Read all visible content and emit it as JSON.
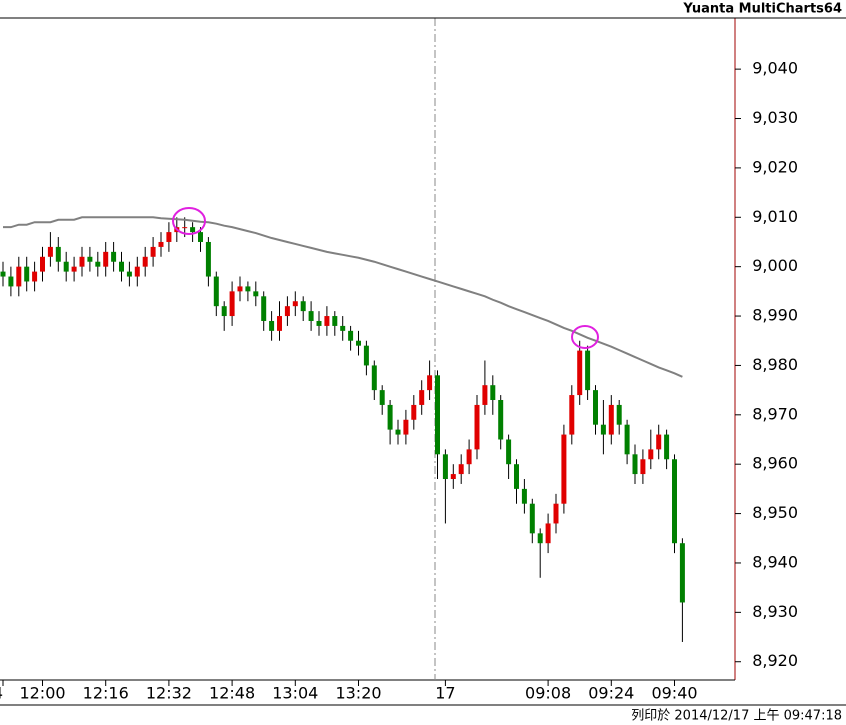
{
  "chart_data": {
    "type": "candlestick",
    "title": "Yuanta MultiCharts64",
    "footnote": "列印於 2014/12/17 上午 09:47:18",
    "categories": [
      "4",
      null,
      null,
      null,
      null,
      "12:00",
      null,
      null,
      null,
      null,
      null,
      null,
      null,
      "12:16",
      null,
      null,
      null,
      null,
      null,
      null,
      null,
      "12:32",
      null,
      null,
      null,
      null,
      null,
      null,
      null,
      "12:48",
      null,
      null,
      null,
      null,
      null,
      null,
      null,
      "13:04",
      null,
      null,
      null,
      null,
      null,
      null,
      null,
      "13:20",
      null,
      null,
      null,
      null,
      null,
      null,
      null,
      null,
      null,
      null,
      "17",
      null,
      null,
      null,
      null,
      null,
      null,
      null,
      null,
      null,
      null,
      null,
      null,
      "09:08",
      null,
      null,
      null,
      null,
      null,
      null,
      null,
      "09:24",
      null,
      null,
      null,
      null,
      null,
      null,
      null,
      "09:40",
      null
    ],
    "open": [
      8999,
      8998,
      8996,
      9000,
      8997,
      8999,
      9002,
      9004,
      9001,
      8999,
      9000,
      9002,
      9001,
      9000,
      9003,
      9001,
      8999,
      8998,
      9000,
      9002,
      9004,
      9005,
      9007,
      9008,
      9008,
      9007,
      9005,
      8998,
      8992,
      8990,
      8995,
      8996,
      8995,
      8994,
      8989,
      8987,
      8990,
      8992,
      8993,
      8991,
      8989,
      8988,
      8990,
      8988,
      8987,
      8985,
      8984,
      8980,
      8975,
      8972,
      8967,
      8966,
      8969,
      8972,
      8975,
      8978,
      8962,
      8957,
      8958,
      8960,
      8963,
      8972,
      8976,
      8973,
      8965,
      8960,
      8955,
      8952,
      8946,
      8944,
      8948,
      8952,
      8966,
      8974,
      8983,
      8975,
      8968,
      8966,
      8972,
      8968,
      8962,
      8958,
      8961,
      8963,
      8966,
      8961,
      8944
    ],
    "high": [
      9001,
      9000,
      9002,
      9002,
      9001,
      9004,
      9007,
      9006,
      9003,
      9002,
      9004,
      9004,
      9003,
      9005,
      9005,
      9003,
      9001,
      9002,
      9004,
      9006,
      9007,
      9009,
      9010,
      9010,
      9009,
      9008,
      9006,
      8999,
      8993,
      8997,
      8998,
      8997,
      8997,
      8995,
      8991,
      8993,
      8994,
      8995,
      8994,
      8993,
      8991,
      8992,
      8991,
      8990,
      8988,
      8987,
      8985,
      8981,
      8976,
      8973,
      8969,
      8971,
      8974,
      8977,
      8981,
      8979,
      8963,
      8960,
      8962,
      8965,
      8974,
      8981,
      8978,
      8974,
      8966,
      8961,
      8957,
      8953,
      8947,
      8950,
      8954,
      8968,
      8976,
      8985,
      8984,
      8976,
      8973,
      8974,
      8973,
      8969,
      8964,
      8963,
      8967,
      8968,
      8967,
      8962,
      8945
    ],
    "low": [
      8996,
      8994,
      8994,
      8995,
      8995,
      8997,
      9000,
      8999,
      8997,
      8997,
      8998,
      8999,
      8998,
      8998,
      8999,
      8997,
      8996,
      8996,
      8998,
      9000,
      9002,
      9003,
      9005,
      9006,
      9005,
      9003,
      8996,
      8990,
      8987,
      8988,
      8993,
      8993,
      8992,
      8987,
      8985,
      8985,
      8988,
      8990,
      8989,
      8987,
      8986,
      8986,
      8986,
      8985,
      8983,
      8982,
      8978,
      8973,
      8970,
      8964,
      8964,
      8964,
      8967,
      8970,
      8973,
      8957,
      8948,
      8955,
      8956,
      8958,
      8961,
      8970,
      8970,
      8963,
      8957,
      8952,
      8950,
      8944,
      8937,
      8942,
      8946,
      8950,
      8964,
      8972,
      8973,
      8966,
      8962,
      8964,
      8966,
      8960,
      8956,
      8956,
      8959,
      8961,
      8959,
      8942,
      8924
    ],
    "close": [
      8998,
      8996,
      9000,
      8997,
      8999,
      9002,
      9004,
      9001,
      8999,
      9000,
      9002,
      9001,
      9000,
      9003,
      9001,
      8999,
      8998,
      9000,
      9002,
      9004,
      9005,
      9007,
      9008,
      9008,
      9007,
      9005,
      8998,
      8992,
      8990,
      8995,
      8996,
      8995,
      8994,
      8989,
      8987,
      8990,
      8992,
      8993,
      8991,
      8989,
      8988,
      8990,
      8988,
      8987,
      8985,
      8984,
      8980,
      8975,
      8972,
      8967,
      8966,
      8969,
      8972,
      8975,
      8978,
      8962,
      8957,
      8958,
      8960,
      8963,
      8972,
      8976,
      8973,
      8965,
      8960,
      8955,
      8952,
      8946,
      8944,
      8948,
      8952,
      8966,
      8974,
      8983,
      8975,
      8968,
      8966,
      8972,
      8968,
      8962,
      8958,
      8961,
      8963,
      8966,
      8961,
      8944,
      8932
    ],
    "up_color": "#e00000",
    "down_color": "#008000",
    "ma": {
      "color": "#808080",
      "values": [
        9008,
        9008,
        9008.5,
        9008.5,
        9009,
        9009,
        9009,
        9009.5,
        9009.5,
        9009.5,
        9010,
        9010,
        9010,
        9010,
        9010,
        9010,
        9010,
        9010,
        9010,
        9010,
        9009.8,
        9009.7,
        9009.6,
        9009.5,
        9009.3,
        9009.1,
        9009,
        9008.7,
        9008.3,
        9008,
        9007.6,
        9007.2,
        9006.8,
        9006.3,
        9005.8,
        9005.4,
        9005,
        9004.6,
        9004.2,
        9003.8,
        9003.4,
        9003,
        9002.7,
        9002.4,
        9002.1,
        9001.8,
        9001.4,
        9001,
        9000.5,
        9000,
        8999.5,
        8999,
        8998.5,
        8998,
        8997.5,
        8997,
        8996.5,
        8996,
        8995.5,
        8995,
        8994.5,
        8994,
        8993.3,
        8992.7,
        8992,
        8991.4,
        8990.8,
        8990.2,
        8989.6,
        8989,
        8988.3,
        8987.6,
        8987,
        8986.3,
        8985.6,
        8985,
        8984.4,
        8983.8,
        8983.1,
        8982.4,
        8981.7,
        8981,
        8980.3,
        8979.6,
        8979,
        8978.4,
        8977.7
      ]
    },
    "ylim": [
      8916.3,
      9054
    ],
    "yticks": [
      {
        "value": 8920,
        "label": "8,920"
      },
      {
        "value": 8930,
        "label": "8,930"
      },
      {
        "value": 8940,
        "label": "8,940"
      },
      {
        "value": 8950,
        "label": "8,950"
      },
      {
        "value": 8960,
        "label": "8,960"
      },
      {
        "value": 8970,
        "label": "8,970"
      },
      {
        "value": 8980,
        "label": "8,980"
      },
      {
        "value": 8990,
        "label": "8,990"
      },
      {
        "value": 9000,
        "label": "9,000"
      },
      {
        "value": 9010,
        "label": "9,010"
      },
      {
        "value": 9020,
        "label": "9,020"
      },
      {
        "value": 9030,
        "label": "9,030"
      },
      {
        "value": 9040,
        "label": "9,040"
      }
    ]
  }
}
